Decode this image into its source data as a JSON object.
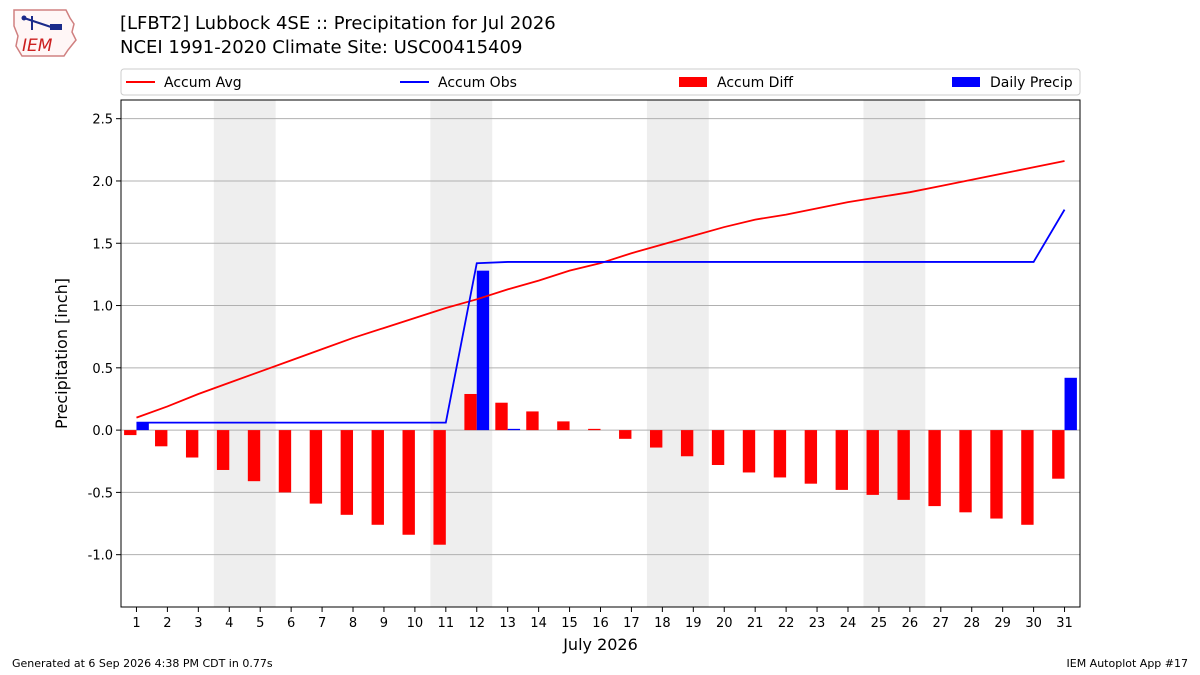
{
  "header": {
    "title": "[LFBT2] Lubbock 4SE :: Precipitation for Jul 2026",
    "subtitle": "NCEI 1991-2020 Climate Site: USC00415409"
  },
  "logo": {
    "text": "IEM"
  },
  "footer": {
    "left": "Generated at 6 Sep 2026 4:38 PM CDT in 0.77s",
    "right": "IEM Autoplot App #17"
  },
  "colors": {
    "accum_avg": "#ff0000",
    "accum_obs": "#0000ff",
    "accum_diff": "#ff0000",
    "daily_precip": "#0000ff",
    "weekend_shade": "#eeeeee",
    "grid": "#b0b0b0"
  },
  "chart_data": {
    "type": "bar",
    "xlabel": "July 2026",
    "ylabel": "Precipitation [inch]",
    "ylim": [
      -1.42,
      2.65
    ],
    "yticks": [
      "-1.0",
      "-0.5",
      "0.0",
      "0.5",
      "1.0",
      "1.5",
      "2.0",
      "2.5"
    ],
    "xlim": [
      0.5,
      31.5
    ],
    "grid": true,
    "legend_placement": "top",
    "legend": [
      "Accum Avg",
      "Accum Obs",
      "Accum Diff",
      "Daily Precip"
    ],
    "shaded_days": [
      [
        4,
        5
      ],
      [
        11,
        12
      ],
      [
        18,
        19
      ],
      [
        25,
        26
      ]
    ],
    "days": [
      1,
      2,
      3,
      4,
      5,
      6,
      7,
      8,
      9,
      10,
      11,
      12,
      13,
      14,
      15,
      16,
      17,
      18,
      19,
      20,
      21,
      22,
      23,
      24,
      25,
      26,
      27,
      28,
      29,
      30,
      31
    ],
    "series": [
      {
        "name": "Accum Avg",
        "kind": "line",
        "values": [
          0.1,
          0.19,
          0.29,
          0.38,
          0.47,
          0.56,
          0.65,
          0.74,
          0.82,
          0.9,
          0.98,
          1.05,
          1.13,
          1.2,
          1.28,
          1.34,
          1.42,
          1.49,
          1.56,
          1.63,
          1.69,
          1.73,
          1.78,
          1.83,
          1.87,
          1.91,
          1.96,
          2.01,
          2.06,
          2.11,
          2.16
        ]
      },
      {
        "name": "Accum Obs",
        "kind": "line",
        "values": [
          0.06,
          0.06,
          0.06,
          0.06,
          0.06,
          0.06,
          0.06,
          0.06,
          0.06,
          0.06,
          0.06,
          1.34,
          1.35,
          1.35,
          1.35,
          1.35,
          1.35,
          1.35,
          1.35,
          1.35,
          1.35,
          1.35,
          1.35,
          1.35,
          1.35,
          1.35,
          1.35,
          1.35,
          1.35,
          1.35,
          1.77
        ]
      },
      {
        "name": "Accum Diff",
        "kind": "bar",
        "values": [
          -0.04,
          -0.13,
          -0.22,
          -0.32,
          -0.41,
          -0.5,
          -0.59,
          -0.68,
          -0.76,
          -0.84,
          -0.92,
          0.29,
          0.22,
          0.15,
          0.07,
          0.01,
          -0.07,
          -0.14,
          -0.21,
          -0.28,
          -0.34,
          -0.38,
          -0.43,
          -0.48,
          -0.52,
          -0.56,
          -0.61,
          -0.66,
          -0.71,
          -0.76,
          -0.39
        ]
      },
      {
        "name": "Daily Precip",
        "kind": "bar",
        "values": [
          0.06,
          0,
          0,
          0,
          0,
          0,
          0,
          0,
          0,
          0,
          0,
          1.28,
          0.01,
          0,
          0,
          0,
          0,
          0,
          0,
          0,
          0,
          0,
          0,
          0,
          0,
          0,
          0,
          0,
          0,
          0,
          0.42
        ]
      }
    ]
  }
}
